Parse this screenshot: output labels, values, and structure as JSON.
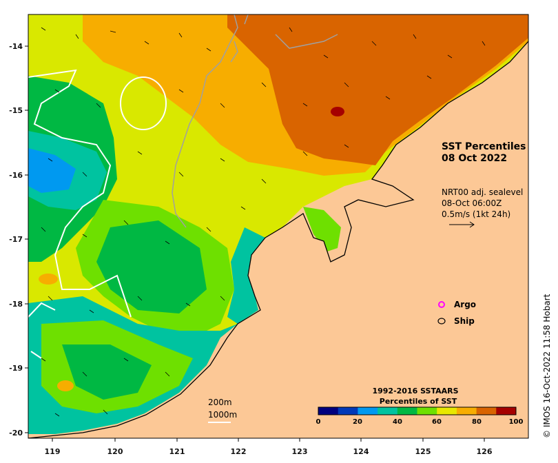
{
  "map": {
    "title_line1": "SST Percentiles",
    "title_line2": "08 Oct 2022",
    "current_info": {
      "line1": "NRT00 adj. sealevel",
      "line2": "08-Oct 06:00Z",
      "line3": "0.5m/s (1kt 24h)"
    },
    "legend": {
      "argo_label": "Argo",
      "ship_label": "Ship",
      "argo_color": "#ff00ff",
      "ship_color": "#000000"
    },
    "colorbar": {
      "title_line1": "1992-2016 SSTAARS",
      "title_line2": "Percentiles of SST",
      "tick_labels": [
        "0",
        "20",
        "40",
        "60",
        "80",
        "100"
      ],
      "colors": [
        "#00007f",
        "#0039b8",
        "#0099f0",
        "#00c3a0",
        "#00b843",
        "#6ee000",
        "#e8e800",
        "#f7ad00",
        "#d96400",
        "#a50000"
      ]
    },
    "depth_contours": {
      "label_200": "200m",
      "label_1000": "1000m"
    },
    "credit": "© IMOS 16-Oct-2022 11:58 Hobart",
    "x_axis": {
      "labels": [
        "119",
        "120",
        "121",
        "122",
        "123",
        "124",
        "125",
        "126"
      ]
    },
    "y_axis": {
      "labels": [
        "-14",
        "-15",
        "-16",
        "-17",
        "-18",
        "-19",
        "-20"
      ]
    },
    "colors": {
      "land": "#fcc896",
      "coast": "#000000",
      "contour_200": "#a0a0a0",
      "contour_1000": "#ffffff"
    }
  }
}
